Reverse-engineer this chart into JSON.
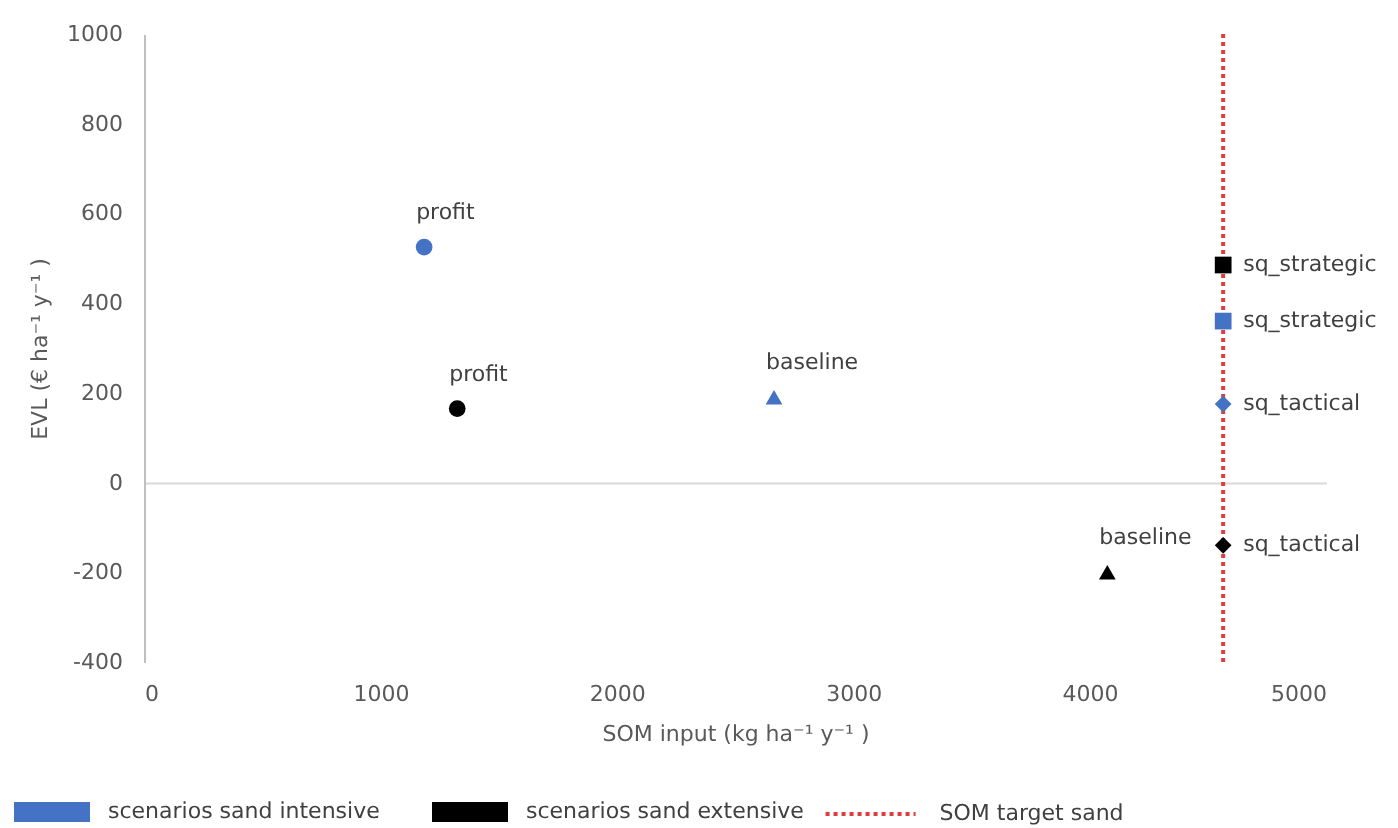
{
  "chart_data": {
    "type": "scatter",
    "xlabel": "SOM input (kg ha⁻¹ y⁻¹ )",
    "ylabel": "EVL (€ ha⁻¹ y⁻¹ )",
    "series": [
      {
        "name": "scenarios sand intensive",
        "color": "#4472c4",
        "x": [
          1185,
          2665,
          4565,
          4565
        ],
        "values": [
          525,
          190,
          360,
          175
        ],
        "marker": [
          "circle",
          "triangle",
          "square",
          "diamond"
        ]
      },
      {
        "name": "scenarios sand extensive",
        "color": "#000000",
        "x": [
          1325,
          4075,
          4565,
          4565
        ],
        "values": [
          165,
          -200,
          485,
          -140
        ],
        "marker": [
          "circle",
          "triangle",
          "square",
          "diamond"
        ]
      }
    ],
    "xlim": [
      0,
      5000
    ],
    "xticks": [
      0,
      1000,
      2000,
      3000,
      4000,
      5000
    ],
    "ylim": [
      -400,
      1000
    ],
    "yticks": [
      -400,
      -200,
      0,
      200,
      400,
      600,
      800,
      1000
    ],
    "ref_lines": [
      {
        "axis": "x",
        "value": 4565,
        "label": "SOM target sand",
        "color": "#e03c3c",
        "line_style": "dotted"
      }
    ],
    "annotations": [
      {
        "text": "profit",
        "x": 1185,
        "y": 525
      },
      {
        "text": "baseline",
        "x": 2665,
        "y": 190
      },
      {
        "text": "sq_strategic",
        "x": 4565,
        "y": 360
      },
      {
        "text": "sq_tactical",
        "x": 4565,
        "y": 175
      },
      {
        "text": "profit",
        "x": 1325,
        "y": 165
      },
      {
        "text": "baseline",
        "x": 4075,
        "y": -200
      },
      {
        "text": "sq_strategic",
        "x": 4565,
        "y": 485
      },
      {
        "text": "sq_tactical",
        "x": 4565,
        "y": -140
      }
    ],
    "legend": "bottom"
  }
}
